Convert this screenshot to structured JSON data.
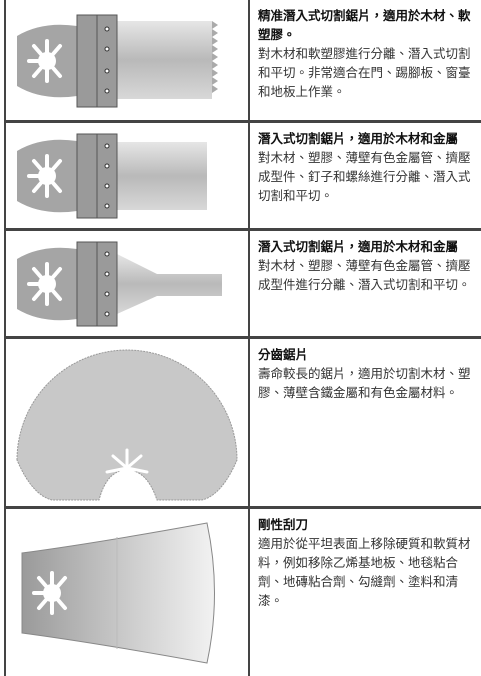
{
  "rows": [
    {
      "title": "精准潛入式切割鋸片，適用於木材、軟塑膠。",
      "description": "對木材和軟塑膠進行分離、潛入式切割和平切。非常適合在門、踢腳板、窗臺和地板上作業。"
    },
    {
      "title": "潛入式切割鋸片，適用於木材和金屬",
      "description": "對木材、塑膠、薄壁有色金屬管、擠壓成型件、釘子和螺絲進行分離、潛入式切割和平切。"
    },
    {
      "title": "潛入式切割鋸片，適用於木材和金屬",
      "description": "對木材、塑膠、薄壁有色金屬管、擠壓成型件進行分離、潛入式切割和平切。"
    },
    {
      "title": "分齒鋸片",
      "description": "壽命較長的鋸片，適用於切割木材、塑膠、薄壁含鐵金屬和有色金屬材料。"
    },
    {
      "title": "剛性刮刀",
      "description": "適用於從平坦表面上移除硬質和軟質材料，例如移除乙烯基地板、地毯粘合劑、地磚粘合劑、勾縫劑、塗料和清漆。"
    }
  ]
}
